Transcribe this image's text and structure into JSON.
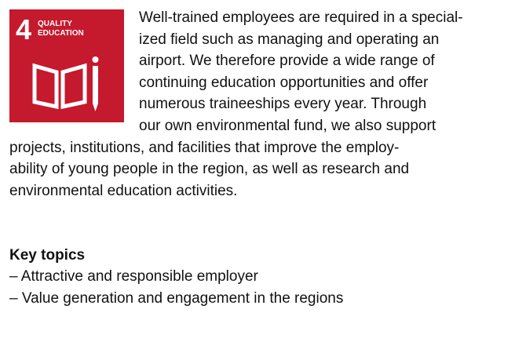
{
  "icon": {
    "number": "4",
    "line1": "QUALITY",
    "line2": "EDUCATION"
  },
  "paragraph": [
    "Well-trained employees are required in a special-",
    "ized field such as managing and operating an",
    "airport. We therefore provide a wide range of",
    "continuing education opportunities and offer",
    "numerous traineeships every year. Through",
    "our own environmental fund, we also support",
    "projects, institutions, and facilities that improve the employ-",
    "ability of young people in the region, as well as research and",
    "environmental education activities."
  ],
  "key_topics": {
    "heading": "Key topics",
    "items": [
      "– Attractive and responsible employer",
      "– Value generation and engagement in the regions"
    ]
  }
}
